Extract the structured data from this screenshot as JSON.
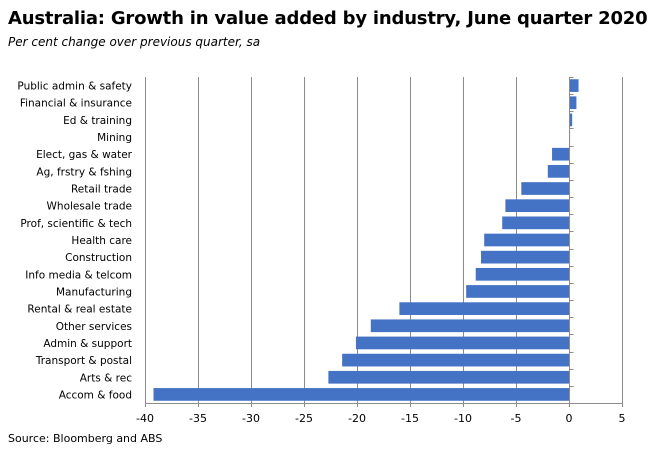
{
  "title": "Australia: Growth in value added by industry, June quarter 2020",
  "subtitle": "Per cent change over previous quarter, sa",
  "source": "Source: Bloomberg and ABS",
  "colors": {
    "bar": "#4472C4",
    "grid": "#8c8c8c",
    "axis": "#8c8c8c"
  },
  "chart_data": {
    "type": "bar",
    "orientation": "horizontal",
    "title": "Australia: Growth in value added by industry, June quarter 2020",
    "subtitle": "Per cent change over previous quarter, sa",
    "categories": [
      "Public admin & safety",
      "Financial & insurance",
      "Ed & training",
      "Mining",
      "Elect, gas & water",
      "Ag, frstry & fshing",
      "Retail trade",
      "Wholesale trade",
      "Prof, scientific & tech",
      "Health care",
      "Construction",
      "Info media & telcom",
      "Manufacturing",
      "Rental  & real estate",
      "Other services",
      "Admin & support",
      "Transport & postal",
      "Arts & rec",
      "Accom & food"
    ],
    "values": [
      0.9,
      0.7,
      0.3,
      0.1,
      -1.6,
      -2.0,
      -4.5,
      -6.0,
      -6.3,
      -8.0,
      -8.3,
      -8.8,
      -9.7,
      -16.0,
      -18.7,
      -20.1,
      -21.4,
      -22.7,
      -39.2
    ],
    "xlim": [
      -40,
      5
    ],
    "xticks": [
      -40,
      -35,
      -30,
      -25,
      -20,
      -15,
      -10,
      -5,
      0,
      5
    ],
    "grid": "vertical",
    "legend": "none"
  }
}
